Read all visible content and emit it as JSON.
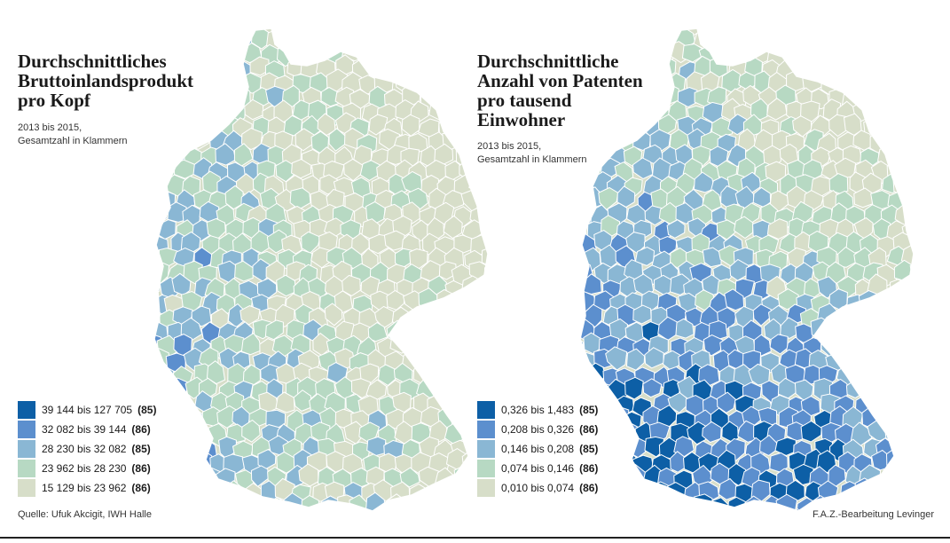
{
  "colors": {
    "c1": "#0d5fa6",
    "c2": "#5c8fce",
    "c3": "#8ab7d4",
    "c4": "#b7d9c3",
    "c5": "#d7dec9",
    "border": "#ffffff"
  },
  "maps": [
    {
      "title": "Durchschnittliches\nBruttoinlandsprodukt\npro Kopf",
      "subtitle": "2013 bis 2015,\nGesamtzahl in Klammern",
      "legend": [
        {
          "range": "39 144 bis 127 705",
          "count": "(85)",
          "color": "#0d5fa6"
        },
        {
          "range": "32 082 bis 39 144",
          "count": "(86)",
          "color": "#5c8fce"
        },
        {
          "range": "28 230 bis 32 082",
          "count": "(85)",
          "color": "#8ab7d4"
        },
        {
          "range": "23 962 bis 28 230",
          "count": "(86)",
          "color": "#b7d9c3"
        },
        {
          "range": "15 129 bis 23 962",
          "count": "(86)",
          "color": "#d7dec9"
        }
      ],
      "pattern": "gdp"
    },
    {
      "title": "Durchschnittliche\nAnzahl von Patenten\npro tausend\nEinwohner",
      "subtitle": "2013 bis 2015,\nGesamtzahl in Klammern",
      "legend": [
        {
          "range": "0,326 bis 1,483",
          "count": "(85)",
          "color": "#0d5fa6"
        },
        {
          "range": "0,208 bis 0,326",
          "count": "(86)",
          "color": "#5c8fce"
        },
        {
          "range": "0,146 bis 0,208",
          "count": "(85)",
          "color": "#8ab7d4"
        },
        {
          "range": "0,074 bis 0,146",
          "count": "(86)",
          "color": "#b7d9c3"
        },
        {
          "range": "0,010 bis 0,074",
          "count": "(86)",
          "color": "#d7dec9"
        }
      ],
      "pattern": "patents"
    }
  ],
  "footer": {
    "source": "Quelle: Ufuk Akcigit, IWH Halle",
    "credit": "F.A.Z.-Bearbeitung Levinger"
  }
}
